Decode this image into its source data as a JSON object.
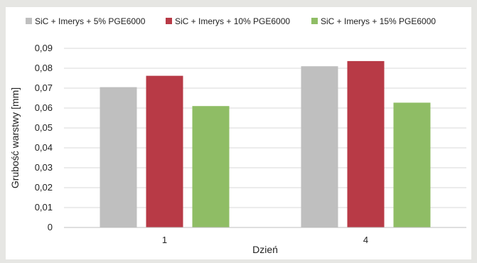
{
  "chart_data": {
    "type": "bar",
    "title": "",
    "xlabel": "Dzień",
    "ylabel": "Grubość warstwy [mm]",
    "categories": [
      "1",
      "4"
    ],
    "series": [
      {
        "name": "SiC + Imerys + 5% PGE6000",
        "color": "#bfbfbf",
        "values": [
          0.0705,
          0.081
        ]
      },
      {
        "name": "SiC + Imerys + 10% PGE6000",
        "color": "#b83a46",
        "values": [
          0.0762,
          0.0836
        ]
      },
      {
        "name": "SiC + Imerys + 15% PGE6000",
        "color": "#8fbd65",
        "values": [
          0.061,
          0.0627
        ]
      }
    ],
    "ylim": [
      0,
      0.09
    ],
    "yticks": [
      "0",
      "0,01",
      "0,02",
      "0,03",
      "0,04",
      "0,05",
      "0,06",
      "0,07",
      "0,08",
      "0,09"
    ],
    "grid": true,
    "legend_position": "top"
  }
}
